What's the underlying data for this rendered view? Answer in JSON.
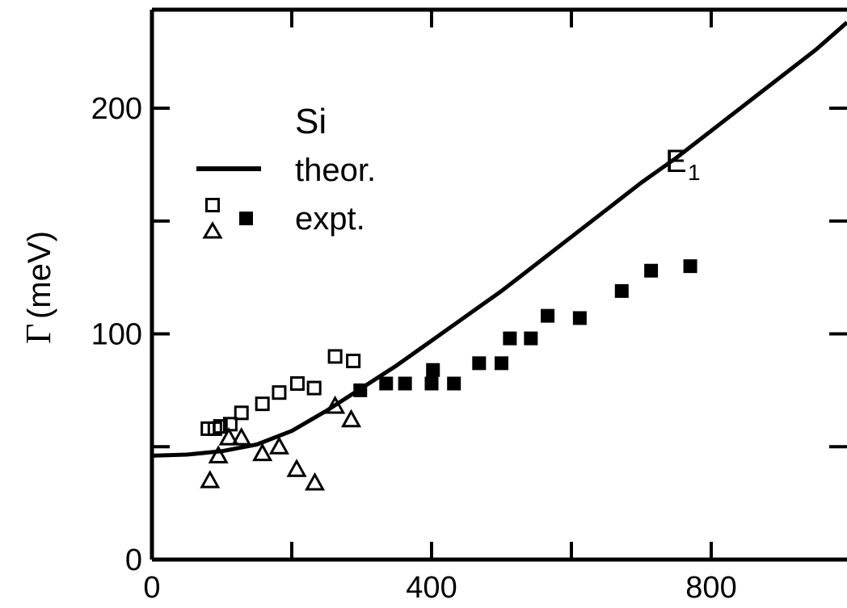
{
  "chart_data": {
    "type": "scatter",
    "title": "",
    "xlabel": "",
    "ylabel": {
      "symbol": "Γ",
      "unit": "(meV)"
    },
    "xlim": [
      0,
      1000
    ],
    "ylim": [
      0,
      240
    ],
    "x_ticks": [
      0,
      400,
      800
    ],
    "x_tick_labels": [
      "0",
      "400",
      "800"
    ],
    "x_minor_ticks": [
      200,
      600
    ],
    "y_ticks": [
      0,
      100,
      200
    ],
    "y_tick_labels": [
      "0",
      "100",
      "200"
    ],
    "y_minor_ticks": [
      50,
      150
    ],
    "grid": false,
    "legend": {
      "placement": "top-left",
      "title": "Si",
      "entries": [
        {
          "label": "theor."
        },
        {
          "label": "expt."
        }
      ]
    },
    "annotation": {
      "text": "E",
      "subscript": "1",
      "at": [
        925,
        173
      ]
    },
    "series": [
      {
        "kind": "line",
        "color": "#000000",
        "x": [
          0,
          50,
          100,
          150,
          200,
          250,
          300,
          350,
          400,
          450,
          500,
          550,
          600,
          650,
          700,
          750,
          800,
          850,
          900,
          950,
          1000
        ],
        "y": [
          46,
          46.5,
          48,
          51,
          57,
          66,
          76,
          86,
          97,
          108,
          119,
          131,
          143,
          155,
          167,
          178,
          190,
          202,
          214,
          226,
          238
        ]
      },
      {
        "kind": "scatter",
        "marker": "open-square",
        "x": [
          80,
          90,
          98,
          112,
          128,
          158,
          182,
          208,
          232,
          262,
          288
        ],
        "y": [
          58,
          58,
          59,
          60,
          65,
          69,
          74,
          78,
          76,
          90,
          88
        ]
      },
      {
        "kind": "scatter",
        "marker": "open-triangle",
        "x": [
          83,
          95,
          110,
          128,
          158,
          182,
          207,
          233,
          262,
          285
        ],
        "y": [
          35,
          46,
          54,
          54,
          47,
          50,
          40,
          34,
          68,
          62
        ]
      },
      {
        "kind": "scatter",
        "marker": "filled-square",
        "x": [
          298,
          335,
          362,
          400,
          402,
          432,
          468,
          500,
          512,
          542,
          566,
          612,
          672,
          714,
          770
        ],
        "y": [
          75,
          78,
          78,
          78,
          84,
          78,
          87,
          87,
          98,
          98,
          108,
          107,
          119,
          128,
          130
        ]
      }
    ]
  }
}
